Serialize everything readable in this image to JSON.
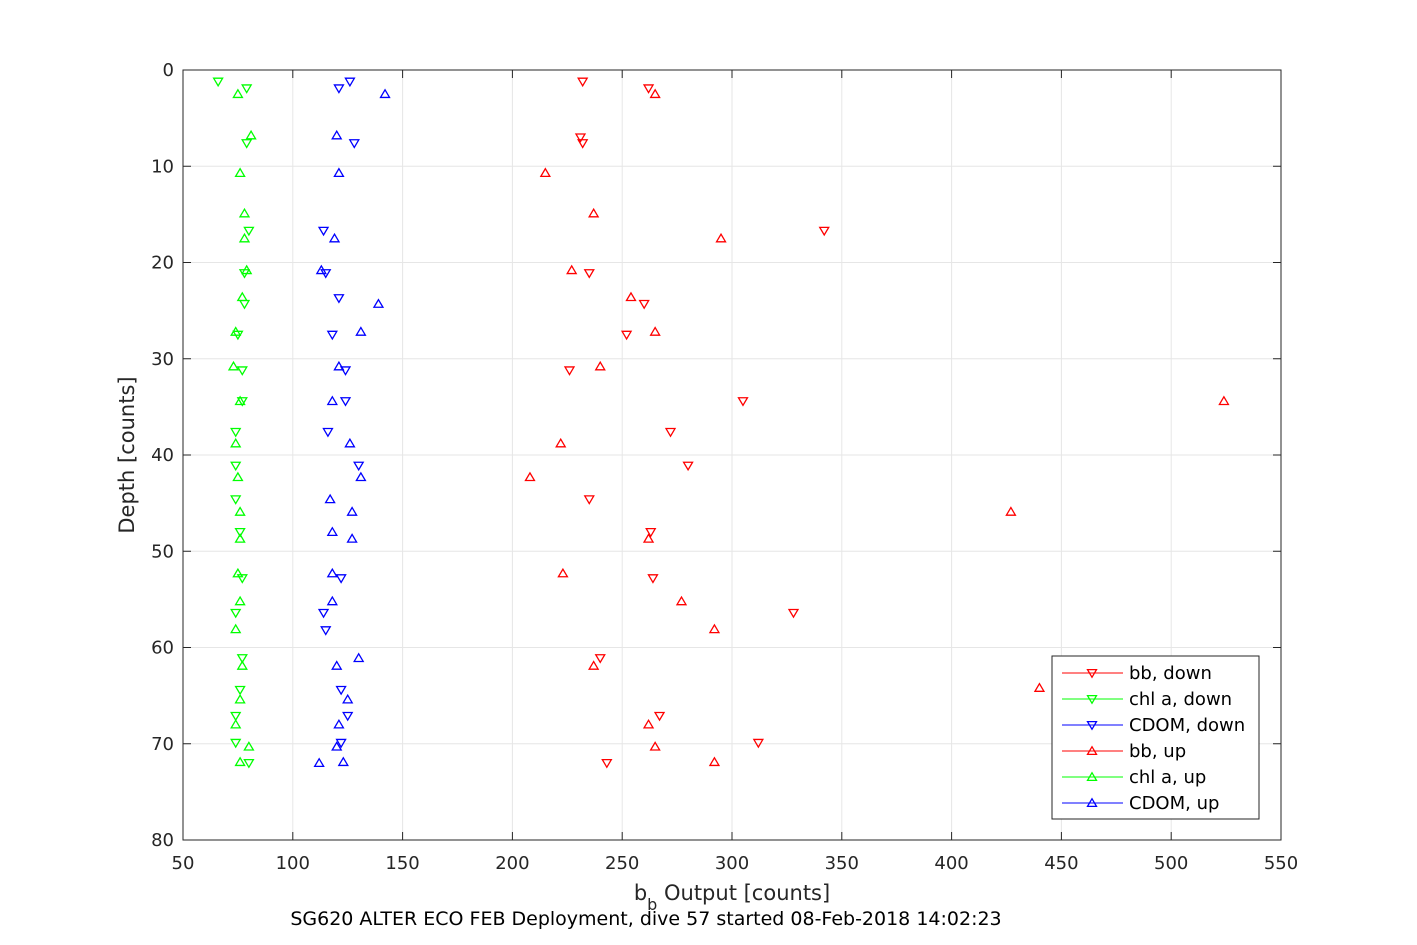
{
  "chart_data": {
    "type": "scatter",
    "title": "",
    "caption": "SG620 ALTER ECO FEB Deployment, dive 57 started 08-Feb-2018 14:02:23",
    "xlabel": {
      "main": "b",
      "sub": "b",
      "rest": " Output [counts]"
    },
    "ylabel": "Depth [counts]",
    "xlim": [
      50,
      550
    ],
    "ylim": [
      0,
      80
    ],
    "y_reversed": true,
    "xticks": [
      50,
      100,
      150,
      200,
      250,
      300,
      350,
      400,
      450,
      500,
      550
    ],
    "yticks": [
      0,
      10,
      20,
      30,
      40,
      50,
      60,
      70,
      80
    ],
    "grid": true,
    "legend_position": "bottom-right",
    "series": [
      {
        "name": "bb, down",
        "color": "#ff0000",
        "marker": "triangle-down",
        "points": [
          [
            232,
            1.2
          ],
          [
            262,
            1.9
          ],
          [
            231,
            7.0
          ],
          [
            232,
            7.6
          ],
          [
            342,
            16.7
          ],
          [
            235,
            21.1
          ],
          [
            260,
            24.3
          ],
          [
            252,
            27.5
          ],
          [
            226,
            31.2
          ],
          [
            305,
            34.4
          ],
          [
            272,
            37.6
          ],
          [
            280,
            41.1
          ],
          [
            235,
            44.6
          ],
          [
            263,
            48.0
          ],
          [
            264,
            52.8
          ],
          [
            328,
            56.4
          ],
          [
            240,
            61.1
          ],
          [
            267,
            67.1
          ],
          [
            312,
            69.9
          ],
          [
            243,
            72.0
          ]
        ]
      },
      {
        "name": "chl a, down",
        "color": "#00ff00",
        "marker": "triangle-down",
        "points": [
          [
            66,
            1.2
          ],
          [
            79,
            1.9
          ],
          [
            79,
            7.6
          ],
          [
            80,
            16.7
          ],
          [
            78,
            21.1
          ],
          [
            78,
            24.3
          ],
          [
            75,
            27.5
          ],
          [
            77,
            31.2
          ],
          [
            77,
            34.4
          ],
          [
            74,
            37.6
          ],
          [
            74,
            41.1
          ],
          [
            74,
            44.6
          ],
          [
            76,
            48.0
          ],
          [
            77,
            52.8
          ],
          [
            74,
            56.4
          ],
          [
            77,
            61.1
          ],
          [
            76,
            64.4
          ],
          [
            74,
            67.1
          ],
          [
            74,
            69.9
          ],
          [
            80,
            72.0
          ]
        ]
      },
      {
        "name": "CDOM, down",
        "color": "#0000ff",
        "marker": "triangle-down",
        "points": [
          [
            126,
            1.2
          ],
          [
            121,
            1.9
          ],
          [
            128,
            7.6
          ],
          [
            114,
            16.7
          ],
          [
            115,
            21.1
          ],
          [
            121,
            23.7
          ],
          [
            118,
            27.5
          ],
          [
            124,
            31.2
          ],
          [
            124,
            34.4
          ],
          [
            116,
            37.6
          ],
          [
            130,
            41.1
          ],
          [
            122,
            52.8
          ],
          [
            114,
            56.4
          ],
          [
            115,
            58.2
          ],
          [
            122,
            64.4
          ],
          [
            125,
            67.1
          ],
          [
            122,
            69.9
          ]
        ]
      },
      {
        "name": "bb, up",
        "color": "#ff0000",
        "marker": "triangle-up",
        "points": [
          [
            265,
            2.5
          ],
          [
            215,
            10.7
          ],
          [
            237,
            14.9
          ],
          [
            295,
            17.5
          ],
          [
            227,
            20.8
          ],
          [
            254,
            23.6
          ],
          [
            265,
            27.2
          ],
          [
            240,
            30.8
          ],
          [
            524,
            34.4
          ],
          [
            222,
            38.8
          ],
          [
            208,
            42.3
          ],
          [
            427,
            45.9
          ],
          [
            262,
            48.7
          ],
          [
            223,
            52.3
          ],
          [
            277,
            55.2
          ],
          [
            292,
            58.1
          ],
          [
            237,
            61.9
          ],
          [
            440,
            64.2
          ],
          [
            262,
            68.0
          ],
          [
            265,
            70.3
          ],
          [
            292,
            71.9
          ]
        ]
      },
      {
        "name": "chl a, up",
        "color": "#00ff00",
        "marker": "triangle-up",
        "points": [
          [
            75,
            2.5
          ],
          [
            81,
            6.8
          ],
          [
            76,
            10.7
          ],
          [
            78,
            14.9
          ],
          [
            78,
            17.5
          ],
          [
            79,
            20.8
          ],
          [
            77,
            23.6
          ],
          [
            74,
            27.2
          ],
          [
            73,
            30.8
          ],
          [
            76,
            34.4
          ],
          [
            74,
            38.8
          ],
          [
            75,
            42.3
          ],
          [
            76,
            45.9
          ],
          [
            76,
            48.7
          ],
          [
            75,
            52.3
          ],
          [
            76,
            55.2
          ],
          [
            74,
            58.1
          ],
          [
            77,
            61.9
          ],
          [
            76,
            65.4
          ],
          [
            74,
            68.0
          ],
          [
            80,
            70.3
          ],
          [
            76,
            71.9
          ]
        ]
      },
      {
        "name": "CDOM, up",
        "color": "#0000ff",
        "marker": "triangle-up",
        "points": [
          [
            142,
            2.5
          ],
          [
            120,
            6.8
          ],
          [
            121,
            10.7
          ],
          [
            119,
            17.5
          ],
          [
            113,
            20.8
          ],
          [
            139,
            24.3
          ],
          [
            131,
            27.2
          ],
          [
            121,
            30.8
          ],
          [
            118,
            34.4
          ],
          [
            126,
            38.8
          ],
          [
            131,
            42.3
          ],
          [
            117,
            44.6
          ],
          [
            127,
            45.9
          ],
          [
            118,
            48.0
          ],
          [
            127,
            48.7
          ],
          [
            118,
            52.3
          ],
          [
            118,
            55.2
          ],
          [
            130,
            61.1
          ],
          [
            120,
            61.9
          ],
          [
            125,
            65.4
          ],
          [
            121,
            68.0
          ],
          [
            120,
            70.3
          ],
          [
            112,
            72.0
          ],
          [
            123,
            71.9
          ]
        ]
      }
    ]
  }
}
